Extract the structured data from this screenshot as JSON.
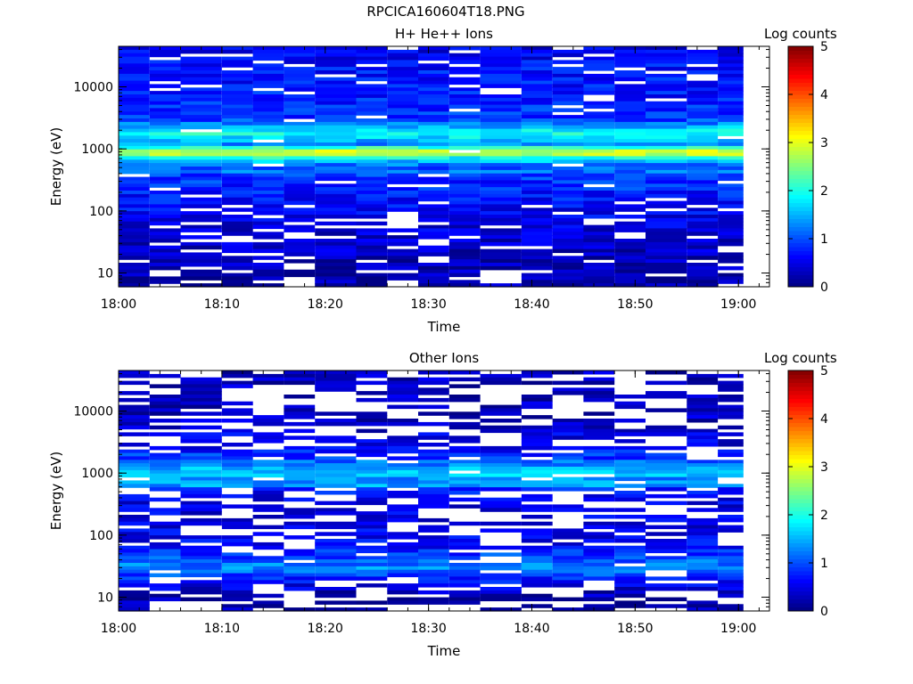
{
  "figure_title": "RPCICA160604T18.PNG",
  "chart_data": [
    {
      "type": "heatmap",
      "title": "H+ He++ Ions",
      "xlabel": "Time",
      "ylabel": "Energy (eV)",
      "x_tick_labels": [
        "18:00",
        "18:10",
        "18:20",
        "18:30",
        "18:40",
        "18:50",
        "19:00"
      ],
      "x_range": [
        "18:00",
        "19:03"
      ],
      "y_scale": "log",
      "y_tick_labels": [
        "10",
        "100",
        "1000",
        "10000"
      ],
      "y_range": [
        6,
        45000
      ],
      "colorbar": {
        "label": "Log counts",
        "range": [
          0,
          5
        ],
        "ticks": [
          "0",
          "1",
          "2",
          "3",
          "4",
          "5"
        ],
        "colormap": "jet"
      },
      "time_bins_start": [
        "18:00",
        "18:03",
        "18:06",
        "18:10",
        "18:13",
        "18:16",
        "18:19",
        "18:23",
        "18:26",
        "18:29",
        "18:32",
        "18:35",
        "18:39",
        "18:42",
        "18:45",
        "18:48",
        "18:51",
        "18:55",
        "18:58"
      ],
      "energy_band_log_counts": [
        {
          "energy_ev": 40000,
          "log_counts": 0.5
        },
        {
          "energy_ev": 20000,
          "log_counts": 0.7
        },
        {
          "energy_ev": 10000,
          "log_counts": 0.7
        },
        {
          "energy_ev": 5000,
          "log_counts": 0.8
        },
        {
          "energy_ev": 3000,
          "log_counts": 0.9
        },
        {
          "energy_ev": 1800,
          "log_counts": 2.0
        },
        {
          "energy_ev": 1200,
          "log_counts": 1.3
        },
        {
          "energy_ev": 950,
          "log_counts": 2.7
        },
        {
          "energy_ev": 850,
          "log_counts": 3.1
        },
        {
          "energy_ev": 700,
          "log_counts": 1.8
        },
        {
          "energy_ev": 500,
          "log_counts": 1.0
        },
        {
          "energy_ev": 250,
          "log_counts": 0.8
        },
        {
          "energy_ev": 100,
          "log_counts": 0.6
        },
        {
          "energy_ev": 40,
          "log_counts": 0.4
        },
        {
          "energy_ev": 15,
          "log_counts": 0.3
        },
        {
          "energy_ev": 8,
          "log_counts": 0.2
        }
      ]
    },
    {
      "type": "heatmap",
      "title": "Other Ions",
      "xlabel": "Time",
      "ylabel": "Energy (eV)",
      "x_tick_labels": [
        "18:00",
        "18:10",
        "18:20",
        "18:30",
        "18:40",
        "18:50",
        "19:00"
      ],
      "x_range": [
        "18:00",
        "19:03"
      ],
      "y_scale": "log",
      "y_tick_labels": [
        "10",
        "100",
        "1000",
        "10000"
      ],
      "y_range": [
        6,
        45000
      ],
      "colorbar": {
        "label": "Log counts",
        "range": [
          0,
          5
        ],
        "ticks": [
          "0",
          "1",
          "2",
          "3",
          "4",
          "5"
        ],
        "colormap": "jet"
      },
      "time_bins_start": [
        "18:00",
        "18:03",
        "18:06",
        "18:10",
        "18:13",
        "18:16",
        "18:19",
        "18:23",
        "18:26",
        "18:29",
        "18:32",
        "18:35",
        "18:39",
        "18:42",
        "18:45",
        "18:48",
        "18:51",
        "18:55",
        "18:58"
      ],
      "energy_band_log_counts": [
        {
          "energy_ev": 30000,
          "log_counts": 0.3
        },
        {
          "energy_ev": 10000,
          "log_counts": 0.3
        },
        {
          "energy_ev": 3000,
          "log_counts": 0.4
        },
        {
          "energy_ev": 1900,
          "log_counts": 0.9
        },
        {
          "energy_ev": 950,
          "log_counts": 1.7
        },
        {
          "energy_ev": 850,
          "log_counts": 1.2
        },
        {
          "energy_ev": 400,
          "log_counts": 0.5
        },
        {
          "energy_ev": 150,
          "log_counts": 0.5
        },
        {
          "energy_ev": 70,
          "log_counts": 0.6
        },
        {
          "energy_ev": 30,
          "log_counts": 1.3
        },
        {
          "energy_ev": 20,
          "log_counts": 0.8
        },
        {
          "energy_ev": 12,
          "log_counts": 0.3
        },
        {
          "energy_ev": 8,
          "log_counts": 0.2
        }
      ]
    }
  ]
}
